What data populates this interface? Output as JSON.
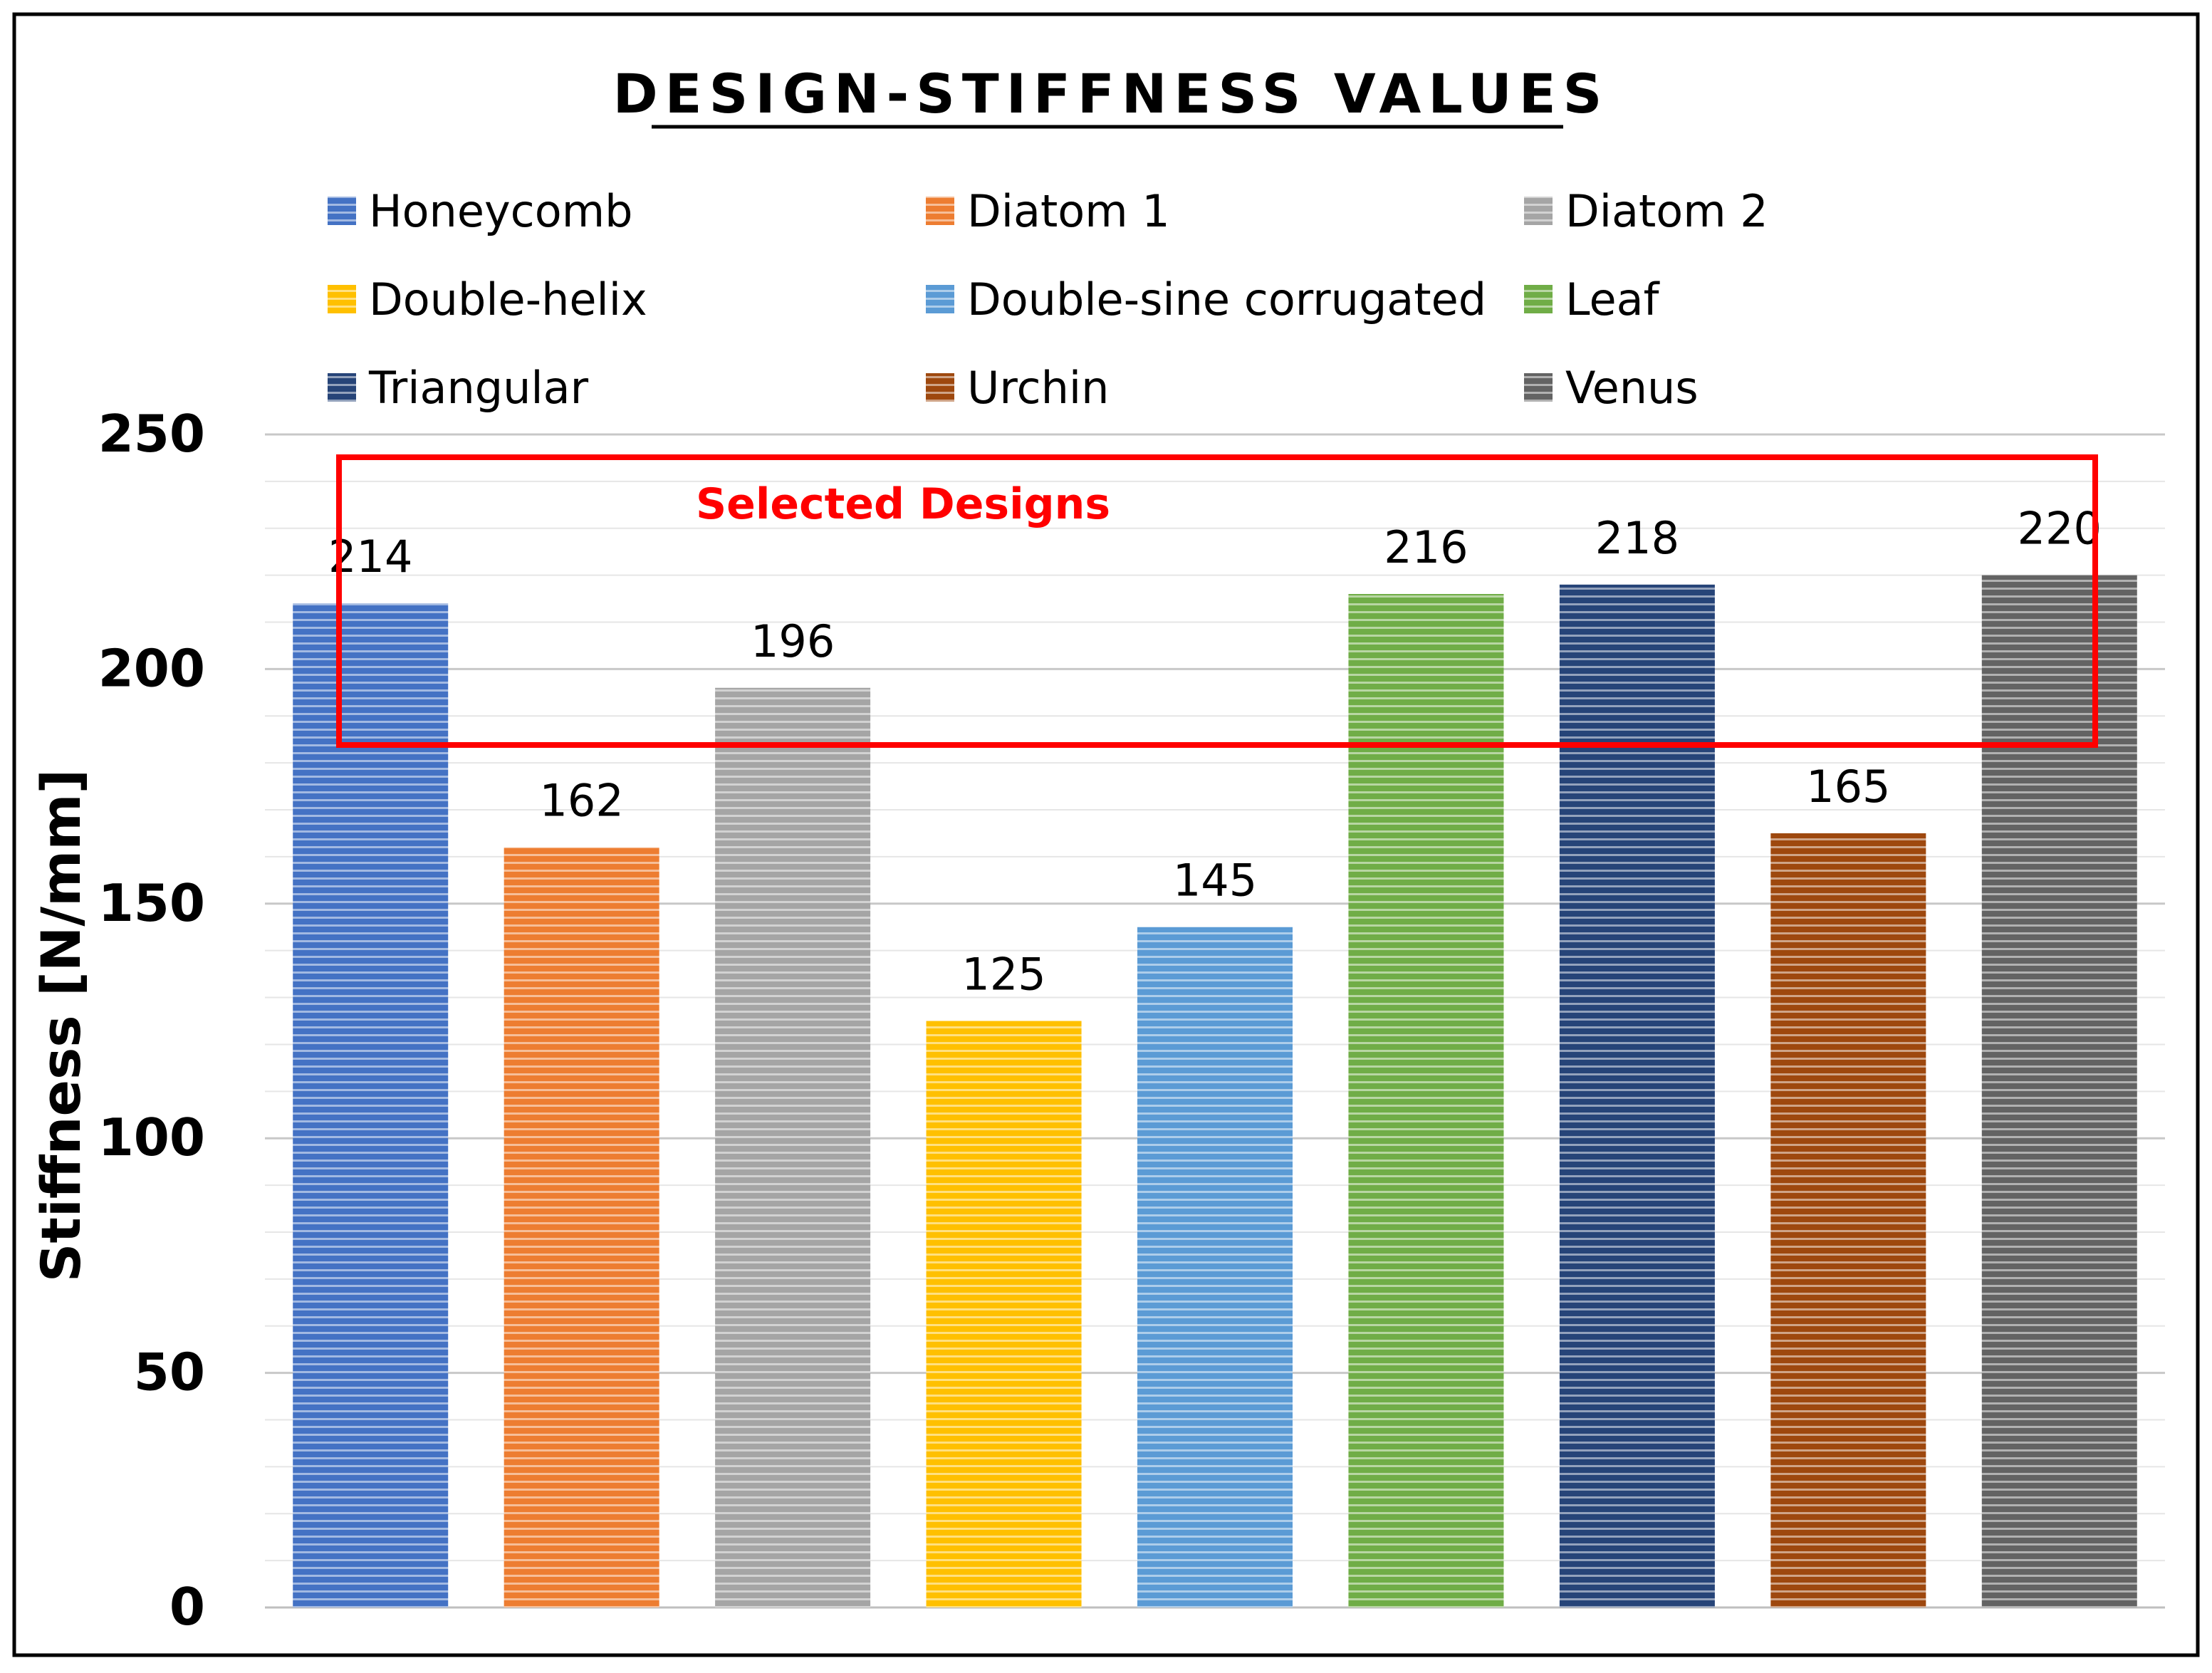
{
  "chart_data": {
    "type": "bar",
    "title": "DESIGN-STIFFNESS VALUES",
    "xlabel": "",
    "ylabel": "Stiffness [N/mm]",
    "ylim": [
      0,
      250
    ],
    "yticks": [
      0,
      50,
      100,
      150,
      200,
      250
    ],
    "grid": true,
    "legend_position": "top",
    "categories": [
      "Honeycomb",
      "Diatom 1",
      "Diatom 2",
      "Double-helix",
      "Double-sine corrugated",
      "Leaf",
      "Triangular",
      "Urchin",
      "Venus"
    ],
    "values": [
      214,
      162,
      196,
      125,
      145,
      216,
      218,
      165,
      220
    ],
    "colors": [
      "#4472c4",
      "#ed7d31",
      "#a5a5a5",
      "#ffc000",
      "#5b9bd5",
      "#70ad47",
      "#264478",
      "#9e480e",
      "#636363"
    ],
    "annotation": {
      "text": "Selected Designs",
      "color": "#ff0000"
    }
  }
}
